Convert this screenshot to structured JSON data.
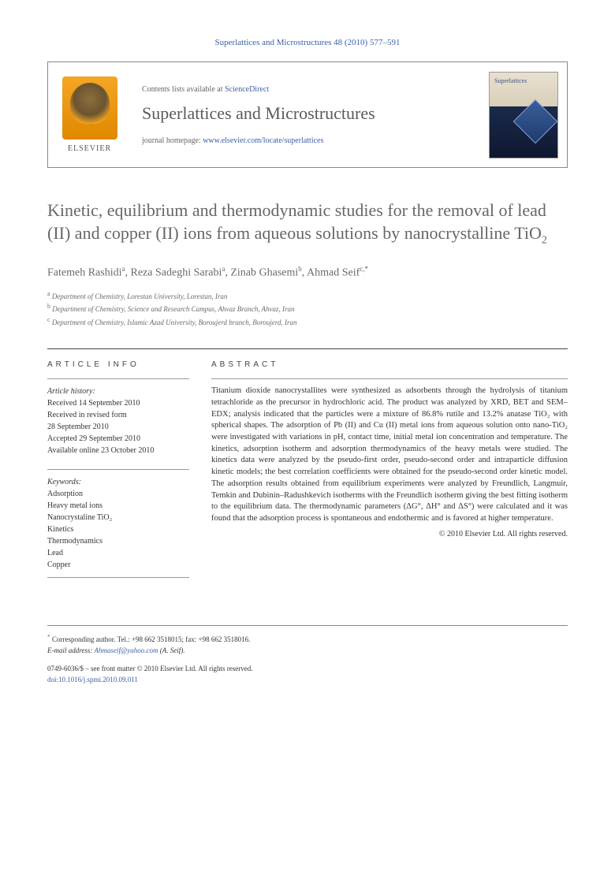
{
  "citation": "Superlattices and Microstructures 48 (2010) 577–591",
  "header": {
    "publisher_label": "ELSEVIER",
    "contents_prefix": "Contents lists available at ",
    "contents_link": "ScienceDirect",
    "journal_name": "Superlattices and Microstructures",
    "homepage_prefix": "journal homepage: ",
    "homepage_link": "www.elsevier.com/locate/superlattices",
    "cover_title": "Superlattices"
  },
  "article": {
    "title": "Kinetic, equilibrium and thermodynamic studies for the removal of lead (II) and copper (II) ions from aqueous solutions by nanocrystalline TiO",
    "title_sub": "2",
    "authors_html": "Fatemeh Rashidi",
    "authors": [
      {
        "name": "Fatemeh Rashidi",
        "aff": "a"
      },
      {
        "name": "Reza Sadeghi Sarabi",
        "aff": "a"
      },
      {
        "name": "Zinab Ghasemi",
        "aff": "b"
      },
      {
        "name": "Ahmad Seif",
        "aff": "c,",
        "corresp": "*"
      }
    ],
    "affiliations": [
      {
        "sup": "a",
        "text": "Department of Chemistry, Lorestan University, Lorestan, Iran"
      },
      {
        "sup": "b",
        "text": "Department of Chemistry, Science and Research Campus, Ahvaz Branch, Ahvaz, Iran"
      },
      {
        "sup": "c",
        "text": "Department of Chemistry, Islamic Azad University, Boroujerd branch, Boroujerd, Iran"
      }
    ]
  },
  "info": {
    "header": "ARTICLE INFO",
    "history_label": "Article history:",
    "received": "Received 14 September 2010",
    "revised_label": "Received in revised form",
    "revised_date": "28 September 2010",
    "accepted": "Accepted 29 September 2010",
    "online": "Available online 23 October 2010",
    "keywords_label": "Keywords:",
    "keywords": [
      "Adsorption",
      "Heavy metal ions",
      "Nanocrystaline TiO₂",
      "Kinetics",
      "Thermodynamics",
      "Lead",
      "Copper"
    ]
  },
  "abstract": {
    "header": "ABSTRACT",
    "text": "Titanium dioxide nanocrystallites were synthesized as adsorbents through the hydrolysis of titanium tetrachloride as the precursor in hydrochloric acid. The product was analyzed by XRD, BET and SEM–EDX; analysis indicated that the particles were a mixture of 86.8% rutile and 13.2% anatase TiO₂ with spherical shapes. The adsorption of Pb (II) and Cu (II) metal ions from aqueous solution onto nano-TiO₂ were investigated with variations in pH, contact time, initial metal ion concentration and temperature. The kinetics, adsorption isotherm and adsorption thermodynamics of the heavy metals were studied. The kinetics data were analyzed by the pseudo-first order, pseudo-second order and intraparticle diffusion kinetic models; the best correlation coefficients were obtained for the pseudo-second order kinetic model. The adsorption results obtained from equilibrium experiments were analyzed by Freundlich, Langmuir, Temkin and Dubinin–Radushkevich isotherms with the Freundlich isotherm giving the best fitting isotherm to the equilibrium data. The thermodynamic parameters (ΔG°, ΔH° and ΔS°) were calculated and it was found that the adsorption process is spontaneous and endothermic and is favored at higher temperature.",
    "copyright": "© 2010 Elsevier Ltd. All rights reserved."
  },
  "footer": {
    "corresp_label": "Corresponding author. Tel.: +98 662 3518015; fax: +98 662 3518016.",
    "email_label": "E-mail address:",
    "email": "Ahmaseif@yahoo.com",
    "email_name": "(A. Seif).",
    "issn_line": "0749-6036/$ – see front matter © 2010 Elsevier Ltd. All rights reserved.",
    "doi_label": "doi:",
    "doi": "10.1016/j.spmi.2010.09.011"
  },
  "colors": {
    "link": "#3a5fa8",
    "title_gray": "#676767",
    "border": "#888888"
  }
}
